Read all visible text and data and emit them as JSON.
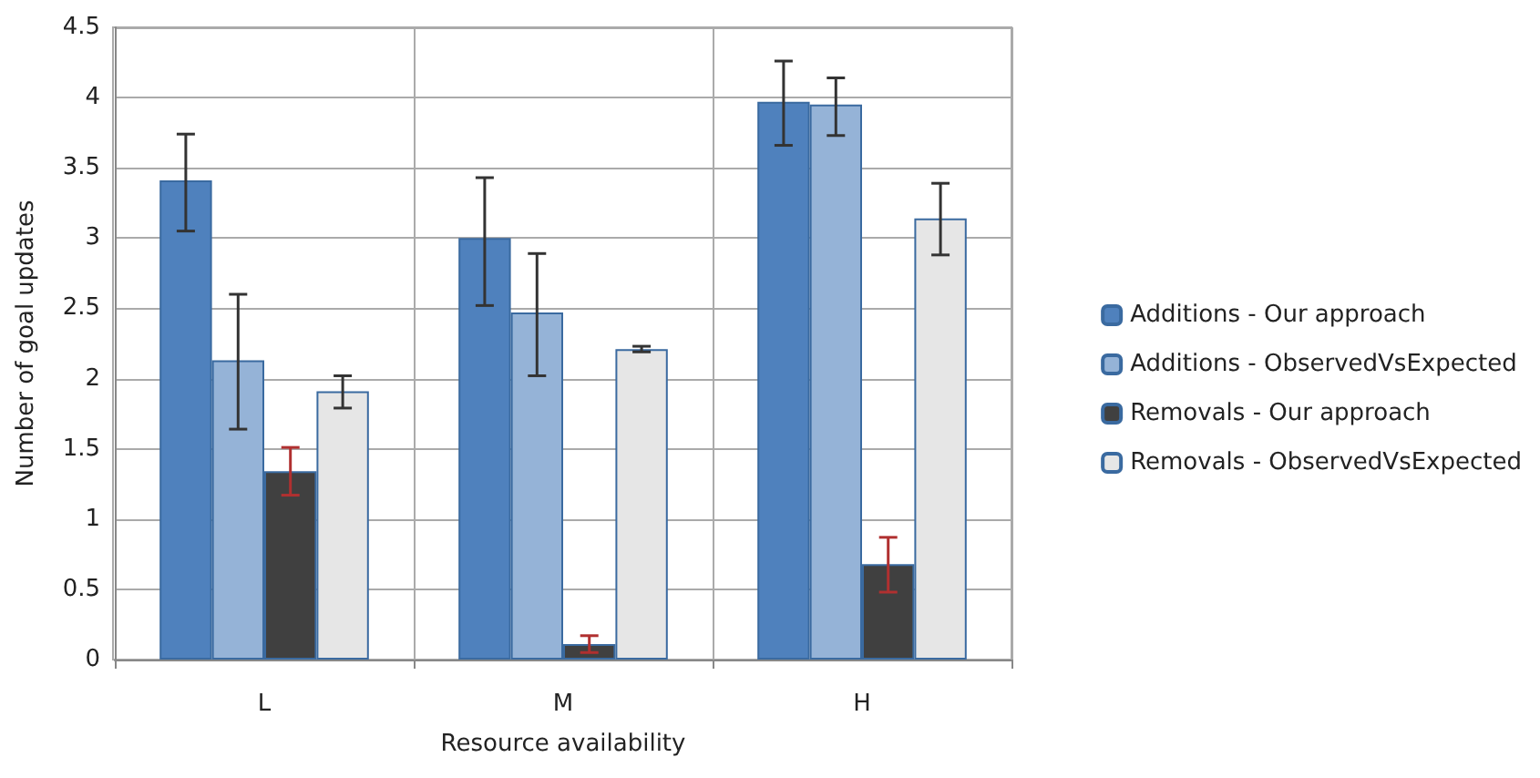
{
  "chart_data": {
    "type": "bar",
    "xlabel": "Resource availability",
    "ylabel": "Number of goal updates",
    "categories": [
      "L",
      "M",
      "H"
    ],
    "series": [
      {
        "name": "Additions - Our approach",
        "color": "#4f81bd",
        "values": [
          3.41,
          3.0,
          3.97
        ],
        "errors": [
          [
            3.05,
            3.74
          ],
          [
            2.52,
            3.43
          ],
          [
            3.66,
            4.26
          ]
        ]
      },
      {
        "name": "Additions - ObservedVsExpected",
        "color": "#95b3d7",
        "values": [
          2.13,
          2.47,
          3.95
        ],
        "errors": [
          [
            1.64,
            2.6
          ],
          [
            2.02,
            2.89
          ],
          [
            3.73,
            4.14
          ]
        ]
      },
      {
        "name": "Removals - Our approach",
        "color": "#404040",
        "values": [
          1.34,
          0.11,
          0.68
        ],
        "errors": [
          [
            1.17,
            1.51
          ],
          [
            0.05,
            0.17
          ],
          [
            0.48,
            0.87
          ]
        ]
      },
      {
        "name": "Removals - ObservedVsExpected",
        "color": "#e6e6e6",
        "values": [
          1.91,
          2.21,
          3.14
        ],
        "errors": [
          [
            1.79,
            2.02
          ],
          [
            2.19,
            2.23
          ],
          [
            2.88,
            3.39
          ]
        ]
      }
    ],
    "ylim": [
      0,
      4.5
    ],
    "yticks": [
      0,
      0.5,
      1,
      1.5,
      2,
      2.5,
      3,
      3.5,
      4,
      4.5
    ],
    "grid": true,
    "legend": "right"
  }
}
